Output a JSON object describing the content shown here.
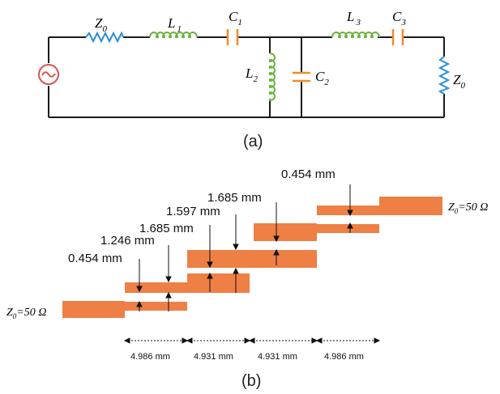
{
  "circuit": {
    "caption": "(a)",
    "labels": {
      "z0_src": {
        "main": "Z",
        "sub": "0"
      },
      "l1": {
        "main": "L",
        "sub": "1"
      },
      "c1": {
        "main": "C",
        "sub": "1"
      },
      "l2": {
        "main": "L",
        "sub": "2"
      },
      "c2": {
        "main": "C",
        "sub": "2"
      },
      "l3": {
        "main": "L",
        "sub": "3"
      },
      "c3": {
        "main": "C",
        "sub": "3"
      },
      "z0_load": {
        "main": "Z",
        "sub": "0"
      }
    }
  },
  "layout_view": {
    "caption": "(b)",
    "port_left": {
      "z": "Z",
      "sub": "0",
      "rest": "=50 Ω"
    },
    "port_right": {
      "z": "Z",
      "sub": "0",
      "rest": "=50 Ω"
    },
    "widths": {
      "w1": "0.454 mm",
      "w2": "1.246 mm",
      "w3": "1.685 mm",
      "w4": "1.597 mm",
      "w5": "1.685 mm",
      "w6": "0.454 mm"
    },
    "lengths": [
      "4.986 mm",
      "4.931 mm",
      "4.931 mm",
      "4.986 mm"
    ]
  },
  "colors": {
    "wire": "#1a1a1a",
    "resistor": "#2a8fd6",
    "inductor": "#6db33f",
    "capacitor": "#f08c2a",
    "source": "#d9534f",
    "microstrip": "#ee7f45"
  }
}
